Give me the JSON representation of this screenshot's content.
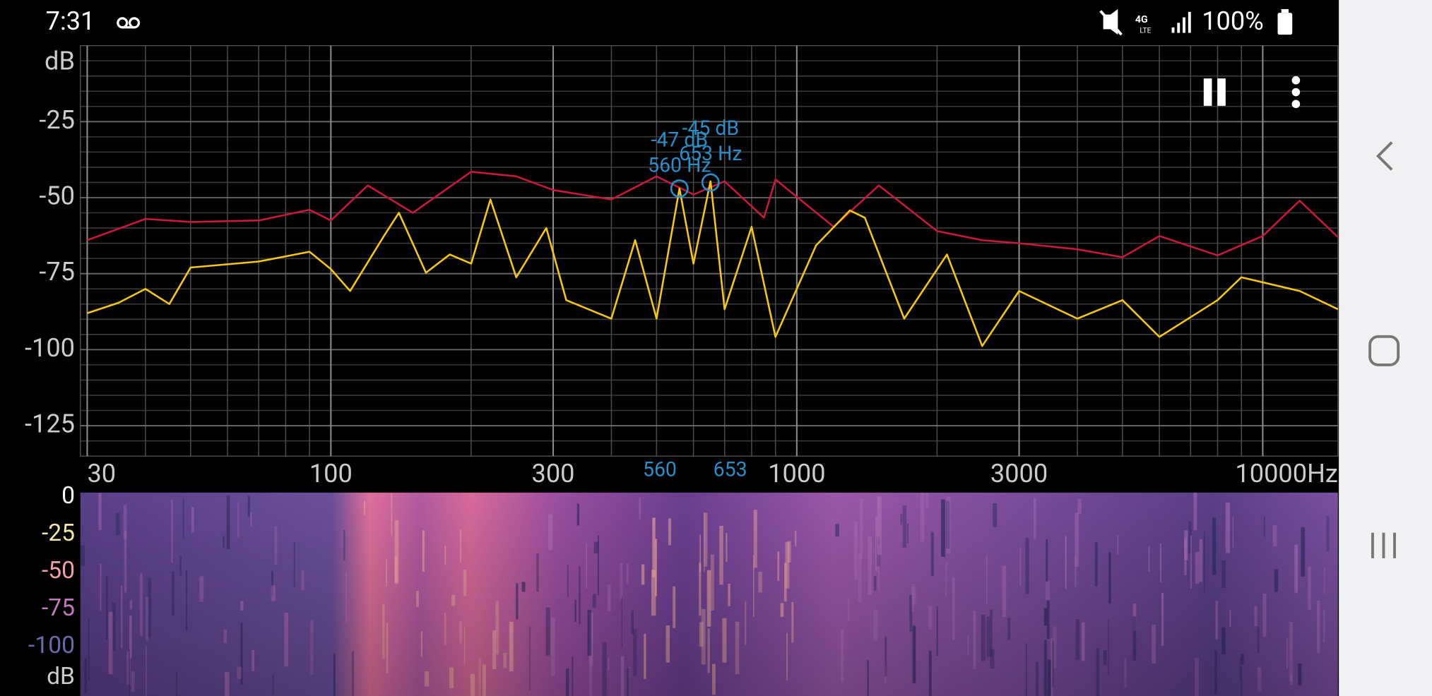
{
  "status_bar": {
    "time": "7:31",
    "battery": "100%"
  },
  "chart_data": {
    "type": "line",
    "y_label": "dB",
    "xlim": [
      29,
      14500
    ],
    "ylim": [
      -135,
      0
    ],
    "log_x": true,
    "grid": true,
    "xticks": [
      30,
      100,
      300,
      1000,
      3000,
      {
        "value": 10000,
        "label": "10000Hz"
      }
    ],
    "yticks": [
      -25,
      -50,
      -75,
      -100,
      -125
    ],
    "xgrid": [
      40,
      50,
      60,
      70,
      80,
      90,
      200,
      400,
      500,
      600,
      700,
      800,
      900,
      2000,
      4000,
      5000,
      6000,
      7000,
      8000,
      9000
    ],
    "ygrid": [
      -5,
      -10,
      -15,
      -20,
      -30,
      -35,
      -40,
      -45,
      -55,
      -60,
      -65,
      -70,
      -80,
      -85,
      -90,
      -95,
      -105,
      -110,
      -115,
      -120,
      -130
    ],
    "series": [
      {
        "color": "#c8183c",
        "x": [
          30,
          40,
          50,
          70,
          90,
          100,
          120,
          150,
          200,
          250,
          300,
          400,
          500,
          600,
          700,
          850,
          900,
          1200,
          1500,
          2000,
          2500,
          3000,
          4000,
          5000,
          6000,
          8000,
          10000,
          12000,
          14500
        ],
        "values": [
          -64,
          -57,
          -58,
          -57.5,
          -54,
          -57.5,
          -46,
          -55,
          -41.5,
          -43,
          -47.5,
          -50.6,
          -43,
          -49,
          -44.6,
          -56.6,
          -44,
          -59.6,
          -46,
          -61,
          -64,
          -65,
          -67,
          -69.6,
          -62.6,
          -69,
          -62.6,
          -51,
          -63
        ]
      },
      {
        "color": "#f5c518",
        "x": [
          30,
          35,
          40,
          45,
          50,
          70,
          90,
          100,
          110,
          130,
          140,
          160,
          180,
          200,
          220,
          250,
          290,
          320,
          400,
          450,
          500,
          560,
          600,
          653,
          700,
          800,
          900,
          1100,
          1300,
          1400,
          1700,
          2100,
          2500,
          3000,
          4000,
          5000,
          6000,
          8000,
          9000,
          12000,
          14500
        ],
        "values": [
          -88,
          -84.6,
          -80,
          -85,
          -73,
          -71,
          -67.8,
          -73.5,
          -80.7,
          -62.6,
          -55,
          -74.7,
          -68.7,
          -71.7,
          -50.6,
          -76.2,
          -60,
          -83.7,
          -89.8,
          -64,
          -89.8,
          -47,
          -71.7,
          -44.6,
          -86.7,
          -59.6,
          -95.8,
          -65.7,
          -54.2,
          -56.6,
          -89.8,
          -68.7,
          -98.8,
          -80.7,
          -89.8,
          -83.7,
          -95.8,
          -83.7,
          -76.2,
          -80.7,
          -86.7
        ]
      }
    ],
    "markers": {
      "color": "#2a8fc9",
      "x": [
        560,
        653
      ],
      "values": [
        -47,
        -45
      ],
      "value_labels": [
        "-47 dB",
        "-45 dB"
      ],
      "x_labels": [
        "560 Hz",
        "653 Hz"
      ]
    }
  },
  "spectrogram": {
    "scale_values": [
      0,
      -25,
      -50,
      -75,
      -100
    ],
    "scale_colors": [
      "#ffffff",
      "#f3e6a8",
      "#f0a0a8",
      "#c07ac0",
      "#6a6aa8"
    ],
    "unit": "dB"
  }
}
